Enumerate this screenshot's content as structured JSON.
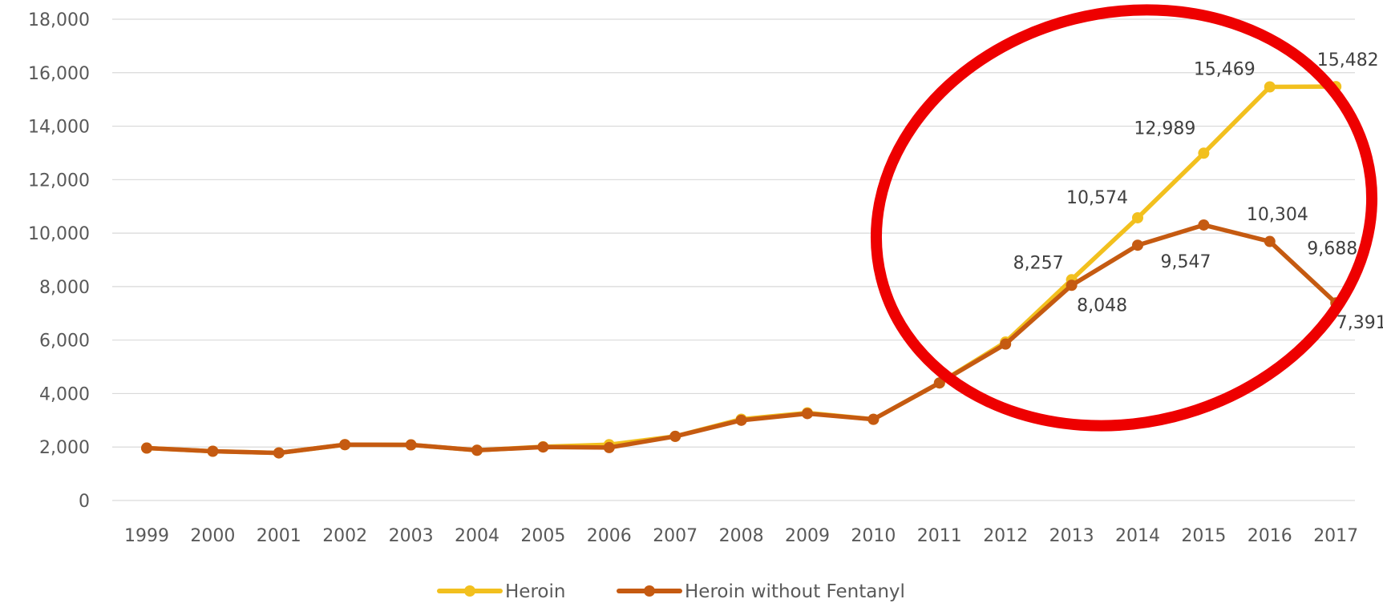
{
  "chart_data": {
    "type": "line",
    "categories": [
      "1999",
      "2000",
      "2001",
      "2002",
      "2003",
      "2004",
      "2005",
      "2006",
      "2007",
      "2008",
      "2009",
      "2010",
      "2011",
      "2012",
      "2013",
      "2014",
      "2015",
      "2016",
      "2017"
    ],
    "ylim": [
      0,
      18000
    ],
    "yticks": [
      0,
      2000,
      4000,
      6000,
      8000,
      10000,
      12000,
      14000,
      16000,
      18000
    ],
    "ytick_labels": [
      "0",
      "2,000",
      "4,000",
      "6,000",
      "8,000",
      "10,000",
      "12,000",
      "14,000",
      "16,000",
      "18,000"
    ],
    "grid": true,
    "legend_position": "bottom",
    "series": [
      {
        "name": "Heroin",
        "color": "#f2c01e",
        "values": [
          1960,
          1842,
          1779,
          2089,
          2080,
          1878,
          2009,
          2088,
          2399,
          3041,
          3278,
          3036,
          4397,
          5925,
          8257,
          10574,
          12989,
          15469,
          15482
        ],
        "data_labels": [
          null,
          null,
          null,
          null,
          null,
          null,
          null,
          null,
          null,
          null,
          null,
          null,
          null,
          null,
          "8,257",
          "10,574",
          "12,989",
          "15,469",
          "15,482"
        ]
      },
      {
        "name": "Heroin without Fentanyl",
        "color": "#c55a11",
        "values": [
          1960,
          1842,
          1779,
          2089,
          2080,
          1878,
          2000,
          1980,
          2399,
          3000,
          3250,
          3036,
          4397,
          5850,
          8048,
          9547,
          10304,
          9688,
          7391
        ],
        "data_labels": [
          null,
          null,
          null,
          null,
          null,
          null,
          null,
          null,
          null,
          null,
          null,
          null,
          null,
          null,
          "8,048",
          "9,547",
          "10,304",
          "9,688",
          "7,391"
        ]
      }
    ],
    "annotation": {
      "shape": "ellipse",
      "color": "#ee0000"
    }
  }
}
